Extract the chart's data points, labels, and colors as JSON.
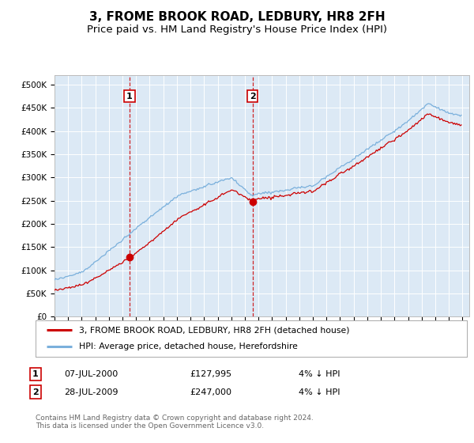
{
  "title": "3, FROME BROOK ROAD, LEDBURY, HR8 2FH",
  "subtitle": "Price paid vs. HM Land Registry's House Price Index (HPI)",
  "title_fontsize": 11,
  "subtitle_fontsize": 9.5,
  "bg_color": "#dce9f5",
  "grid_color": "#ffffff",
  "yticks": [
    0,
    50000,
    100000,
    150000,
    200000,
    250000,
    300000,
    350000,
    400000,
    450000,
    500000
  ],
  "ytick_labels": [
    "£0",
    "£50K",
    "£100K",
    "£150K",
    "£200K",
    "£250K",
    "£300K",
    "£350K",
    "£400K",
    "£450K",
    "£500K"
  ],
  "xmin": 1995.0,
  "xmax": 2025.5,
  "ymin": 0,
  "ymax": 520000,
  "sale1_x": 2000.52,
  "sale1_y": 127995,
  "sale2_x": 2009.57,
  "sale2_y": 247000,
  "sale1_date": "07-JUL-2000",
  "sale1_price": "£127,995",
  "sale1_hpi": "4% ↓ HPI",
  "sale2_date": "28-JUL-2009",
  "sale2_price": "£247,000",
  "sale2_hpi": "4% ↓ HPI",
  "marker_color": "#cc0000",
  "dashed_line_color": "#cc0000",
  "hpi_line_color": "#7ab0dc",
  "property_line_color": "#cc0000",
  "footer_text": "Contains HM Land Registry data © Crown copyright and database right 2024.\nThis data is licensed under the Open Government Licence v3.0.",
  "legend_label1": "3, FROME BROOK ROAD, LEDBURY, HR8 2FH (detached house)",
  "legend_label2": "HPI: Average price, detached house, Herefordshire"
}
